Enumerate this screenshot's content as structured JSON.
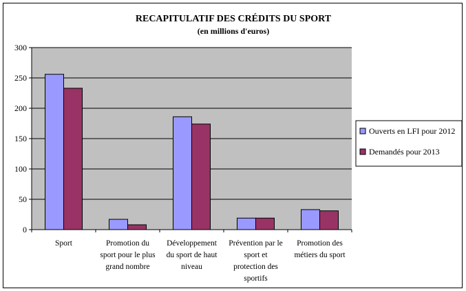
{
  "chart_data": {
    "type": "bar",
    "title": "RECAPITULATIF DES CRÉDITS DU SPORT",
    "subtitle": "(en millions d'euros)",
    "xlabel": "",
    "ylabel": "",
    "ylim": [
      0,
      300
    ],
    "yticks": [
      0,
      50,
      100,
      150,
      200,
      250,
      300
    ],
    "grid": true,
    "legend_position": "right",
    "categories": [
      [
        "Sport"
      ],
      [
        "Promotion du",
        "sport pour le plus",
        "grand nombre"
      ],
      [
        "Développement",
        "du sport de haut",
        "niveau"
      ],
      [
        "Prévention par le",
        "sport et",
        "protection des",
        "sportifs"
      ],
      [
        "Promotion des",
        "métiers du sport"
      ]
    ],
    "series": [
      {
        "name": "Ouverts en LFI pour 2012",
        "color": "#9999ff",
        "values": [
          256,
          17,
          186,
          19,
          33
        ]
      },
      {
        "name": "Demandés pour 2013",
        "color": "#993366",
        "values": [
          233,
          8,
          174,
          19,
          31
        ]
      }
    ],
    "plot_background": "#c0c0c0"
  }
}
